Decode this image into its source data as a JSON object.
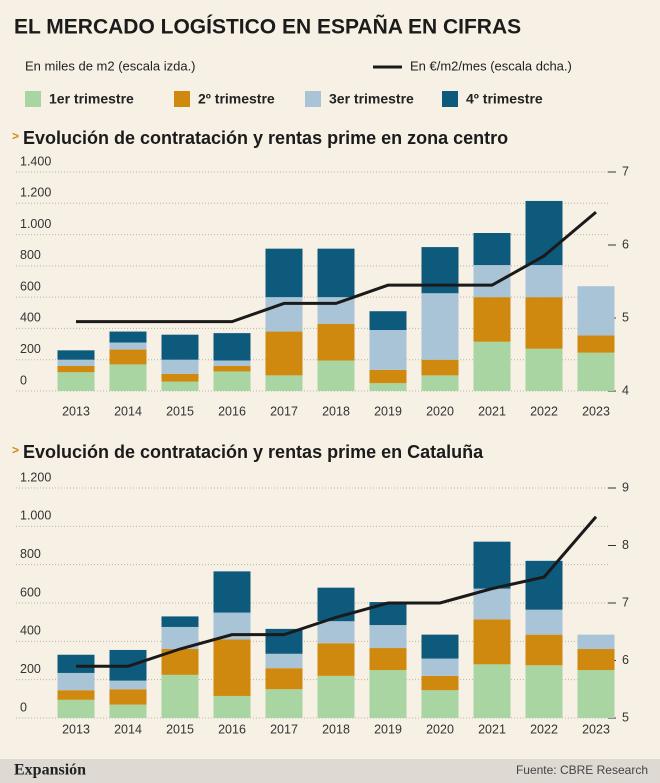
{
  "title": "EL MERCADO LOGÍSTICO EN ESPAÑA EN CIFRAS",
  "footer": {
    "brand": "Expansión",
    "source": "Fuente: CBRE Research"
  },
  "chart_data": [
    {
      "type": "bar",
      "stacked": true,
      "title": "Evolución de contratación y rentas prime en zona centro",
      "ylabel": "En miles de m2 (escala izda.)",
      "categories": [
        "2013",
        "2014",
        "2015",
        "2016",
        "2017",
        "2018",
        "2019",
        "2020",
        "2021",
        "2022",
        "2023"
      ],
      "series": [
        {
          "name": "1er trimestre",
          "color": "#a8d5a2",
          "values": [
            120,
            170,
            60,
            125,
            100,
            195,
            50,
            100,
            315,
            270,
            245
          ]
        },
        {
          "name": "2º trimestre",
          "color": "#d0890f",
          "values": [
            40,
            95,
            50,
            35,
            280,
            235,
            85,
            100,
            285,
            330,
            110
          ]
        },
        {
          "name": "3er trimestre",
          "color": "#a9c4d6",
          "values": [
            40,
            45,
            90,
            35,
            220,
            170,
            255,
            425,
            205,
            205,
            315
          ]
        },
        {
          "name": "4º trimestre",
          "color": "#0e5a7c",
          "values": [
            60,
            70,
            160,
            175,
            310,
            310,
            120,
            295,
            205,
            410,
            0
          ]
        },
        {
          "name": "En €/m2/mes (escala dcha.)",
          "type": "line",
          "axis": "y2",
          "color": "#1a1a1a",
          "values": [
            4.95,
            4.95,
            4.95,
            4.95,
            5.2,
            5.2,
            5.45,
            5.45,
            5.45,
            5.85,
            6.45
          ]
        }
      ],
      "ylim": [
        0,
        1400
      ],
      "yticks": [
        0,
        200,
        400,
        600,
        800,
        {
          "value": 1000,
          "label": "1.000"
        },
        {
          "value": 1200,
          "label": "1.200"
        },
        {
          "value": 1400,
          "label": "1.400"
        }
      ],
      "y2lim": [
        4,
        7
      ],
      "y2ticks": [
        4,
        5,
        6,
        7
      ],
      "grid": true
    },
    {
      "type": "bar",
      "stacked": true,
      "title": "Evolución de contratación y rentas prime en Cataluña",
      "categories": [
        "2013",
        "2014",
        "2015",
        "2016",
        "2017",
        "2018",
        "2019",
        "2020",
        "2021",
        "2022",
        "2023"
      ],
      "series": [
        {
          "color": "#a8d5a2",
          "values": [
            95,
            70,
            225,
            115,
            150,
            220,
            250,
            145,
            280,
            275,
            250
          ]
        },
        {
          "color": "#d0890f",
          "values": [
            50,
            80,
            135,
            295,
            110,
            170,
            115,
            75,
            235,
            160,
            110
          ]
        },
        {
          "color": "#a9c4d6",
          "values": [
            90,
            45,
            115,
            140,
            75,
            115,
            120,
            90,
            160,
            130,
            75
          ]
        },
        {
          "color": "#0e5a7c",
          "values": [
            95,
            160,
            55,
            215,
            130,
            175,
            120,
            125,
            245,
            255,
            0
          ]
        },
        {
          "type": "line",
          "axis": "y2",
          "color": "#1a1a1a",
          "values": [
            5.9,
            5.9,
            6.2,
            6.45,
            6.45,
            6.75,
            7.0,
            7.0,
            7.25,
            7.45,
            8.5
          ]
        }
      ],
      "ylim": [
        0,
        1200
      ],
      "yticks": [
        0,
        200,
        400,
        600,
        800,
        {
          "value": 1000,
          "label": "1.000"
        },
        {
          "value": 1200,
          "label": "1.200"
        }
      ],
      "y2lim": [
        5,
        9
      ],
      "y2ticks": [
        5,
        6,
        7,
        8,
        9
      ],
      "grid": true
    }
  ]
}
